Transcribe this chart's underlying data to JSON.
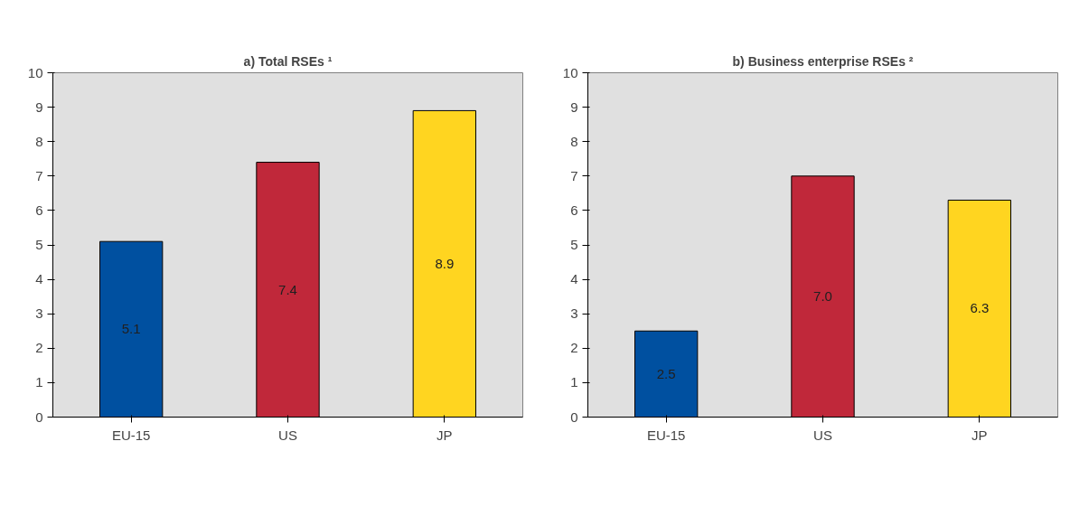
{
  "chart_data": [
    {
      "type": "bar",
      "title": "a) Total RSEs ¹",
      "categories": [
        "EU-15",
        "US",
        "JP"
      ],
      "values": [
        5.1,
        7.4,
        8.9
      ],
      "value_labels": [
        "5.1",
        "7.4",
        "8.9"
      ],
      "colors": [
        "#0050a0",
        "#c0283a",
        "#ffd520"
      ],
      "ylim": [
        0,
        10
      ],
      "yticks": [
        0,
        1,
        2,
        3,
        4,
        5,
        6,
        7,
        8,
        9,
        10
      ]
    },
    {
      "type": "bar",
      "title": "b) Business enterprise RSEs ²",
      "categories": [
        "EU-15",
        "US",
        "JP"
      ],
      "values": [
        2.5,
        7.0,
        6.3
      ],
      "value_labels": [
        "2.5",
        "7.0",
        "6.3"
      ],
      "colors": [
        "#0050a0",
        "#c0283a",
        "#ffd520"
      ],
      "ylim": [
        0,
        10
      ],
      "yticks": [
        0,
        1,
        2,
        3,
        4,
        5,
        6,
        7,
        8,
        9,
        10
      ]
    }
  ]
}
